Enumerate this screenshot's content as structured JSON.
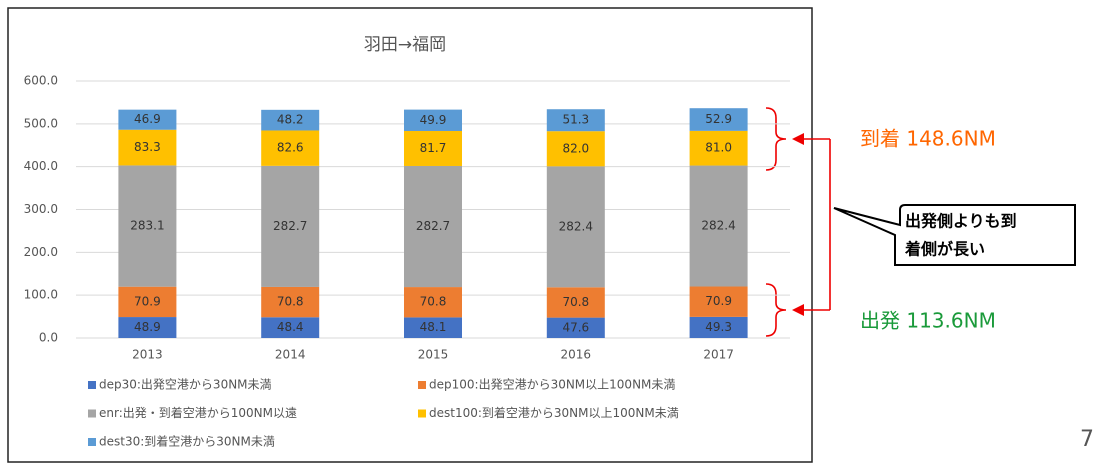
{
  "chart_data": {
    "type": "stacked_bar",
    "title": "羽田→福岡",
    "categories": [
      "2013",
      "2014",
      "2015",
      "2016",
      "2017"
    ],
    "series": [
      {
        "name": "dep30:出発空港から30NM未満",
        "color": "#4472c4",
        "values": [
          48.9,
          48.4,
          48.1,
          47.6,
          49.3
        ]
      },
      {
        "name": "dep100:出発空港から30NM以上100NM未満",
        "color": "#ed7d31",
        "values": [
          70.9,
          70.8,
          70.8,
          70.8,
          70.9
        ]
      },
      {
        "name": "enr:出発・到着空港から100NM以遠",
        "color": "#a5a5a5",
        "values": [
          283.1,
          282.7,
          282.7,
          282.4,
          282.4
        ]
      },
      {
        "name": "dest100:到着空港から30NM以上100NM未満",
        "color": "#ffc000",
        "values": [
          83.3,
          82.6,
          81.7,
          82.0,
          81.0
        ],
        "value_labels": [
          "83.3",
          "82.6",
          "81.7",
          "82.0",
          "81.0"
        ]
      },
      {
        "name": "dest30:到着空港から30NM未満",
        "color": "#5b9bd5",
        "values": [
          46.9,
          48.2,
          49.9,
          51.3,
          52.9
        ]
      }
    ],
    "ylim": [
      0,
      600
    ],
    "yticks": [
      {
        "value": 0,
        "label": "0.0"
      },
      {
        "value": 100,
        "label": "100.0"
      },
      {
        "value": 200,
        "label": "200.0"
      },
      {
        "value": 300,
        "label": "300.0"
      },
      {
        "value": 400,
        "label": "400.0"
      },
      {
        "value": 500,
        "label": "500.0"
      },
      {
        "value": 600,
        "label": "600.0"
      }
    ],
    "grid": true,
    "annotations": {
      "arrival": "到着 148.6NM",
      "departure": "出発 113.6NM",
      "callout": [
        "出発側よりも到",
        "着側が長い"
      ]
    },
    "page_number": "7"
  }
}
